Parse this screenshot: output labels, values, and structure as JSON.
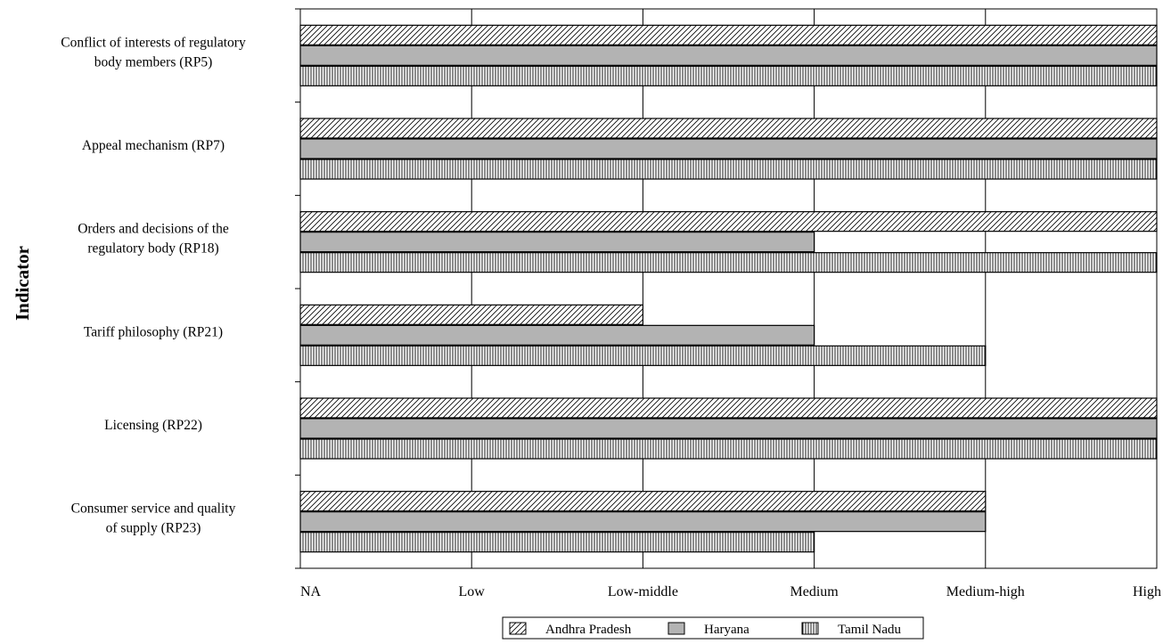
{
  "chart_data": {
    "type": "bar",
    "orientation": "horizontal",
    "title": "",
    "xlabel": "",
    "ylabel": "Indicator",
    "levels": [
      "NA",
      "Low",
      "Low-middle",
      "Medium",
      "Medium-high",
      "High"
    ],
    "xlim": [
      0,
      5
    ],
    "grid": "vertical gridlines at each level",
    "legend_position": "bottom-center",
    "categories": [
      [
        "Conflict of interests of regulatory",
        "body members (RP5)"
      ],
      [
        "Appeal mechanism (RP7)"
      ],
      [
        "Orders and decisions of the",
        "regulatory body (RP18)"
      ],
      [
        "Tariff philosophy (RP21)"
      ],
      [
        "Licensing (RP22)"
      ],
      [
        "Consumer service and quality",
        "of supply (RP23)"
      ]
    ],
    "series": [
      {
        "name": "Andhra Pradesh",
        "pattern": "diagonal-hatch",
        "values": [
          5,
          5,
          5,
          2,
          5,
          4
        ]
      },
      {
        "name": "Haryana",
        "pattern": "solid-gray",
        "color": "#b3b3b3",
        "values": [
          5,
          5,
          3,
          3,
          5,
          4
        ]
      },
      {
        "name": "Tamil Nadu",
        "pattern": "vertical-hatch",
        "values": [
          5,
          5,
          5,
          4,
          5,
          3
        ]
      }
    ]
  }
}
